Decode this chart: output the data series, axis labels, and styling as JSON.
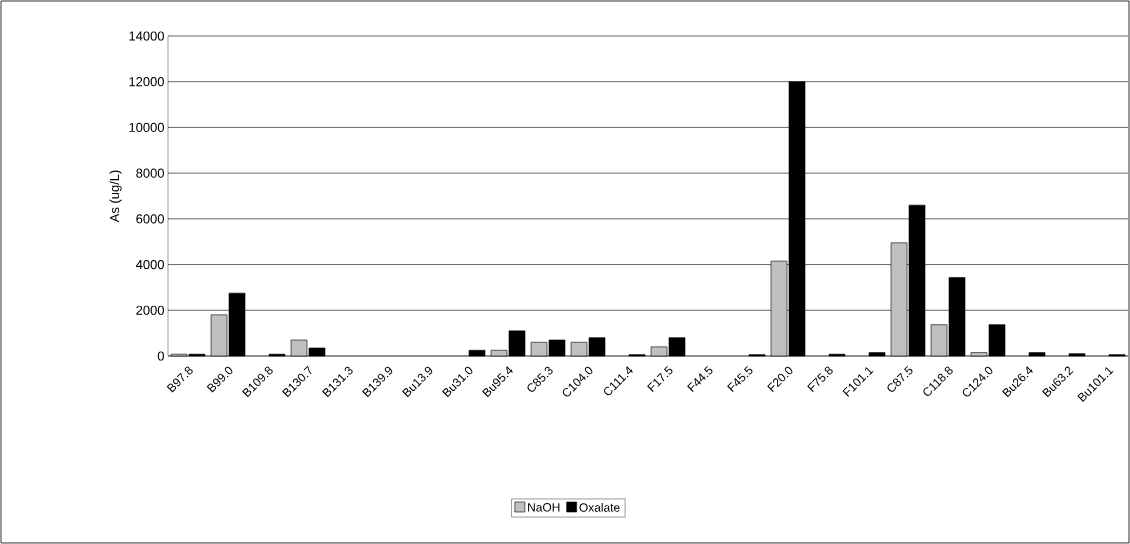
{
  "chart_data": {
    "type": "bar",
    "ylabel": "As (ug/L)",
    "categories": [
      "B97.8",
      "B99.0",
      "B109.8",
      "B130.7",
      "B131.3",
      "B139.9",
      "Bu13.9",
      "Bu31.0",
      "Bu95.4",
      "C85.3",
      "C104.0",
      "C111.4",
      "F17.5",
      "F44.5",
      "F45.5",
      "F20.0",
      "F75.8",
      "F101.1",
      "C87.5",
      "C118.8",
      "C124.0",
      "Bu26.4",
      "Bu63.2",
      "Bu101.1"
    ],
    "series": [
      {
        "name": "NaOH",
        "color": "#c0c0c0",
        "values": [
          80,
          1800,
          null,
          700,
          null,
          null,
          null,
          null,
          250,
          600,
          600,
          null,
          400,
          null,
          null,
          4150,
          null,
          null,
          4950,
          1370,
          150,
          null,
          null,
          null
        ]
      },
      {
        "name": "Oxalate",
        "color": "#000000",
        "values": [
          80,
          2750,
          80,
          350,
          null,
          null,
          null,
          250,
          1100,
          700,
          800,
          60,
          800,
          null,
          60,
          12000,
          80,
          150,
          6600,
          3430,
          1370,
          150,
          100,
          60
        ]
      }
    ],
    "ylim": [
      0,
      14000
    ],
    "yticks": [
      0,
      2000,
      4000,
      6000,
      8000,
      10000,
      12000,
      14000
    ],
    "grid": "y",
    "legend": "bottom"
  }
}
